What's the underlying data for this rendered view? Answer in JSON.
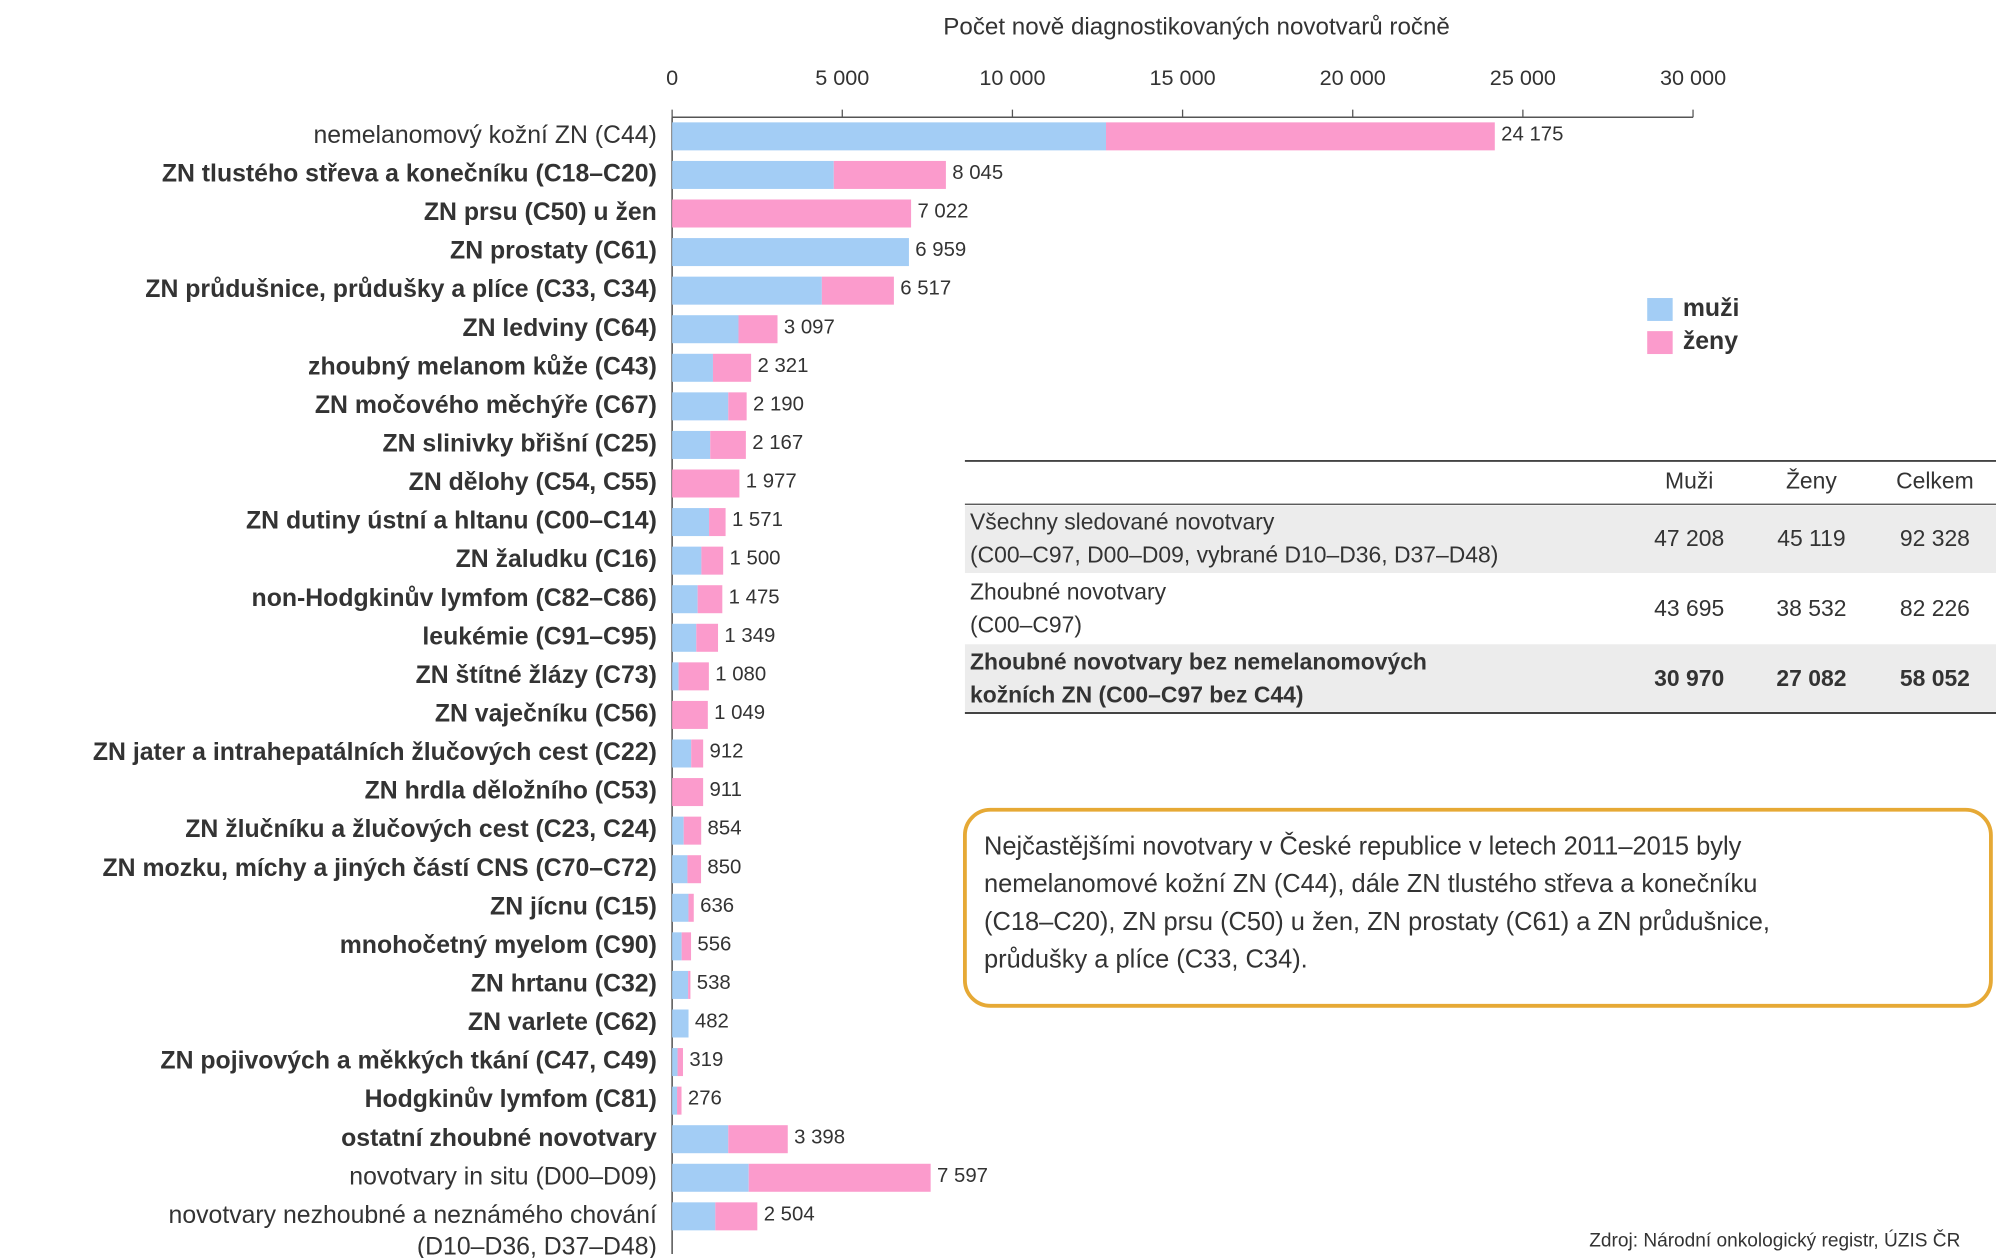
{
  "chart_data": {
    "type": "stacked-barh",
    "x_label": "Počet nově diagnostikovaných novotvarů ročně",
    "xlim": [
      0,
      30000
    ],
    "xticks": [
      0,
      {
        "value": 5000,
        "label": "5 000"
      },
      {
        "value": 10000,
        "label": "10 000"
      },
      {
        "value": 15000,
        "label": "15 000"
      },
      {
        "value": 20000,
        "label": "20 000"
      },
      {
        "value": 25000,
        "label": "25 000"
      },
      {
        "value": 30000,
        "label": "30 000"
      }
    ],
    "categories": [
      "nemelanomový kožní ZN (C44)",
      "ZN tlustého střeva a konečníku (C18–C20)",
      "ZN prsu (C50) u žen",
      "ZN prostaty (C61)",
      "ZN průdušnice, průdušky a plíce (C33, C34)",
      "ZN ledviny (C64)",
      "zhoubný melanom kůže (C43)",
      "ZN močového měchýře (C67)",
      "ZN slinivky břišní (C25)",
      "ZN dělohy (C54, C55)",
      "ZN dutiny ústní a hltanu (C00–C14)",
      "ZN žaludku (C16)",
      "non-Hodgkinův lymfom (C82–C86)",
      "leukémie (C91–C95)",
      "ZN štítné žlázy (C73)",
      "ZN vaječníku (C56)",
      "ZN jater a intrahepatálních žlučových cest (C22)",
      "ZN hrdla děložního (C53)",
      "ZN žlučníku a žlučových cest (C23, C24)",
      "ZN mozku, míchy a jiných částí CNS (C70–C72)",
      "ZN jícnu (C15)",
      "mnohočetný myelom (C90)",
      "ZN hrtanu (C32)",
      "ZN varlete (C62)",
      "ZN pojivových a měkkých tkání (C47, C49)",
      "Hodgkinův lymfom (C81)",
      "ostatní zhoubné novotvary",
      "novotvary in situ (D00–D09)",
      [
        "novotvary nezhoubné a neznámého chování",
        "(D10–D36, D37–D48)"
      ]
    ],
    "series": [
      {
        "name": "muži",
        "color": "#a3cdf5",
        "values": [
          12750,
          4750,
          0,
          6959,
          4400,
          1950,
          1200,
          1650,
          1120,
          0,
          1085,
          860,
          750,
          710,
          190,
          0,
          560,
          0,
          340,
          450,
          480,
          280,
          470,
          482,
          160,
          145,
          1650,
          2250,
          1270
        ]
      },
      {
        "name": "ženy",
        "color": "#fb9bcc",
        "values": [
          11425,
          3295,
          7022,
          0,
          2117,
          1147,
          1121,
          540,
          1047,
          1977,
          486,
          640,
          725,
          639,
          890,
          1049,
          352,
          911,
          514,
          400,
          156,
          276,
          68,
          0,
          159,
          131,
          1748,
          5347,
          1234
        ]
      }
    ],
    "totals": [
      24175,
      8045,
      7022,
      6959,
      6517,
      3097,
      2321,
      2190,
      2167,
      1977,
      1571,
      1500,
      1475,
      1349,
      1080,
      1049,
      912,
      911,
      854,
      850,
      636,
      556,
      538,
      482,
      319,
      276,
      3398,
      7597,
      2504
    ],
    "total_labels": [
      "24 175",
      "8 045",
      "7 022",
      "6 959",
      "6 517",
      "3 097",
      "2 321",
      "2 190",
      "2 167",
      "1 977",
      "1 571",
      "1 500",
      "1 475",
      "1 349",
      "1 080",
      "1 049",
      "912",
      "911",
      "854",
      "850",
      "636",
      "556",
      "538",
      "482",
      "319",
      "276",
      "3 398",
      "7 597",
      "2 504"
    ]
  },
  "table": {
    "header": [
      "Muži",
      "Ženy",
      "Celkem"
    ],
    "rows": [
      {
        "label": [
          "Všechny sledované novotvary",
          "(C00–C97, D00–D09, vybrané D10–D36, D37–D48)"
        ],
        "cells": [
          "47 208",
          "45 119",
          "92 328"
        ]
      },
      {
        "label": [
          "Zhoubné novotvary",
          "(C00–C97)"
        ],
        "cells": [
          "43 695",
          "38 532",
          "82 226"
        ]
      },
      {
        "label": [
          "Zhoubné novotvary bez nemelanomových",
          "kožních ZN (C00–C97 bez C44)"
        ],
        "cells": [
          "30 970",
          "27 082",
          "58 052"
        ]
      }
    ]
  },
  "note": [
    "Nejčastějšími novotvary v České republice v letech 2011–2015 byly",
    "nemelanomové kožní ZN (C44), dále ZN tlustého střeva a konečníku",
    "(C18–C20), ZN prsu (C50) u žen, ZN prostaty (C61) a ZN průdušnice,",
    "průdušky a plíce (C33, C34)."
  ],
  "source": "Zdroj: Národní onkologický registr, ÚZIS ČR"
}
